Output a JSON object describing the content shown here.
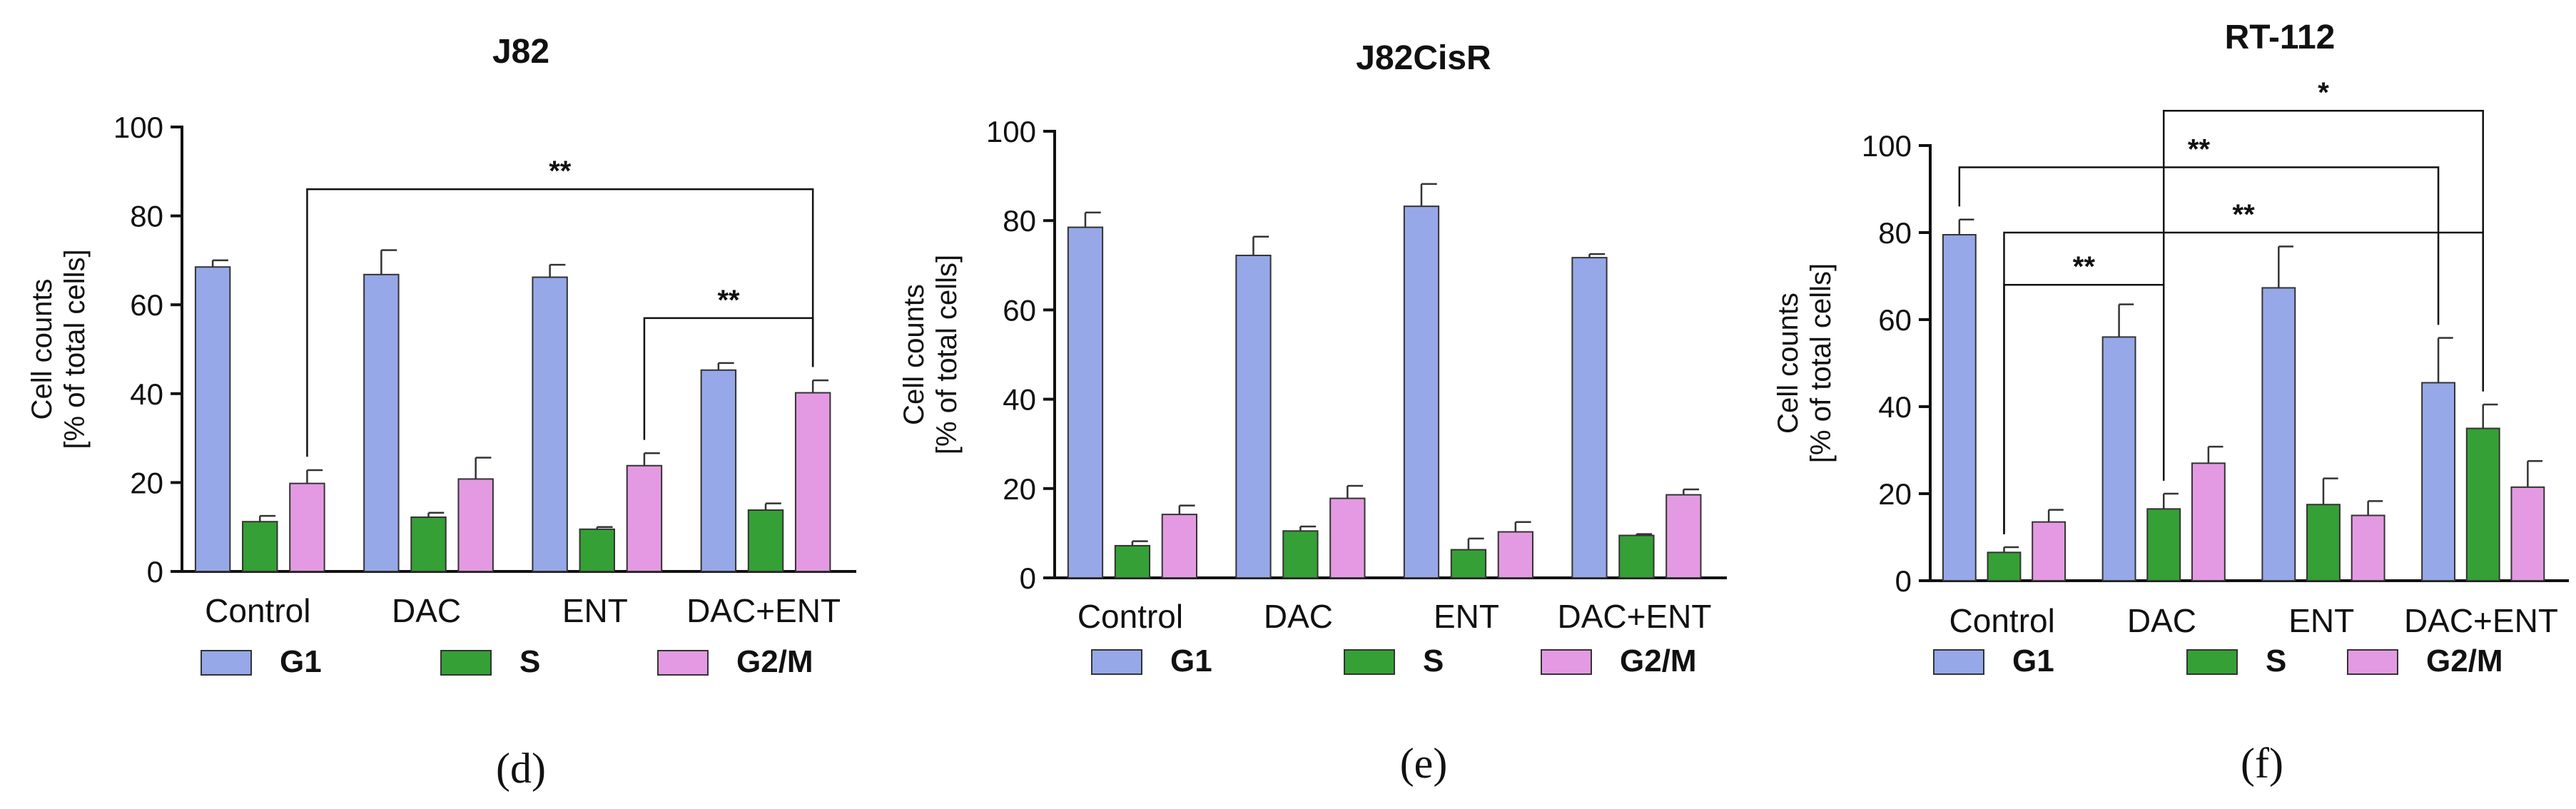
{
  "colors": {
    "G1": "#96a8e8",
    "S": "#35a035",
    "G2/M": "#e49ae2"
  },
  "chart_data": [
    {
      "type": "bar",
      "title": "J82",
      "caption": "(d)",
      "ylabel_line1": "Cell counts",
      "ylabel_line2": "[% of total cells]",
      "ylim": [
        0,
        100
      ],
      "yticks": [
        "0",
        "20",
        "40",
        "60",
        "80",
        "100"
      ],
      "categories": [
        "Control",
        "DAC",
        "ENT",
        "DAC+ENT"
      ],
      "series": [
        {
          "name": "G1",
          "values": [
            68.5,
            66.8,
            66.2,
            45.3
          ],
          "errors": [
            1.5,
            5.5,
            2.8,
            1.6
          ]
        },
        {
          "name": "S",
          "values": [
            11.2,
            12.2,
            9.5,
            13.8
          ],
          "errors": [
            1.3,
            1.0,
            0.5,
            1.5
          ]
        },
        {
          "name": "G2/M",
          "values": [
            19.8,
            20.8,
            23.8,
            40.2
          ],
          "errors": [
            3.0,
            4.8,
            2.8,
            2.8
          ]
        }
      ],
      "annotations": [
        {
          "text": "**",
          "from_group": 0,
          "from_series": 2,
          "to_group": 3,
          "to_series": 2,
          "level": 86
        },
        {
          "text": "**",
          "from_group": 2,
          "from_series": 2,
          "to_group": 3,
          "to_series": 2,
          "level": 57
        }
      ]
    },
    {
      "type": "bar",
      "title": "J82CisR",
      "caption": "(e)",
      "ylabel_line1": "Cell counts",
      "ylabel_line2": "[% of total cells]",
      "ylim": [
        0,
        100
      ],
      "yticks": [
        "0",
        "20",
        "40",
        "60",
        "80",
        "100"
      ],
      "categories": [
        "Control",
        "DAC",
        "ENT",
        "DAC+ENT"
      ],
      "series": [
        {
          "name": "G1",
          "values": [
            78.5,
            72.2,
            83.2,
            71.7
          ],
          "errors": [
            3.3,
            4.2,
            5.0,
            0.8
          ]
        },
        {
          "name": "S",
          "values": [
            7.2,
            10.5,
            6.3,
            9.5
          ],
          "errors": [
            1.0,
            1.0,
            2.5,
            0.3
          ]
        },
        {
          "name": "G2/M",
          "values": [
            14.2,
            17.8,
            10.3,
            18.6
          ],
          "errors": [
            2.0,
            2.8,
            2.2,
            1.2
          ]
        }
      ],
      "annotations": []
    },
    {
      "type": "bar",
      "title": "RT-112",
      "caption": "(f)",
      "ylabel_line1": "Cell counts",
      "ylabel_line2": "[% of total cells]",
      "ylim": [
        0,
        100
      ],
      "yticks": [
        "0",
        "20",
        "40",
        "60",
        "80",
        "100"
      ],
      "categories": [
        "Control",
        "DAC",
        "ENT",
        "DAC+ENT"
      ],
      "series": [
        {
          "name": "G1",
          "values": [
            79.5,
            56.0,
            67.3,
            45.5
          ],
          "errors": [
            3.5,
            7.5,
            9.5,
            10.3
          ]
        },
        {
          "name": "S",
          "values": [
            6.5,
            16.5,
            17.5,
            35.0
          ],
          "errors": [
            1.2,
            3.5,
            6.0,
            5.5
          ]
        },
        {
          "name": "G2/M",
          "values": [
            13.5,
            27.0,
            15.0,
            21.5
          ],
          "errors": [
            2.8,
            3.8,
            3.3,
            6.0
          ]
        }
      ],
      "annotations": [
        {
          "text": "*",
          "from_group": 1,
          "from_series": 1,
          "to_group": 3,
          "to_series": 1,
          "level": 108
        },
        {
          "text": "**",
          "from_group": 0,
          "from_series": 0,
          "to_group": 3,
          "to_series": 0,
          "level": 95
        },
        {
          "text": "**",
          "from_group": 0,
          "from_series": 1,
          "to_group": 3,
          "to_series": 1,
          "level": 80
        },
        {
          "text": "**",
          "from_group": 0,
          "from_series": 1,
          "to_group": 1,
          "to_series": 1,
          "level": 68
        }
      ]
    }
  ]
}
